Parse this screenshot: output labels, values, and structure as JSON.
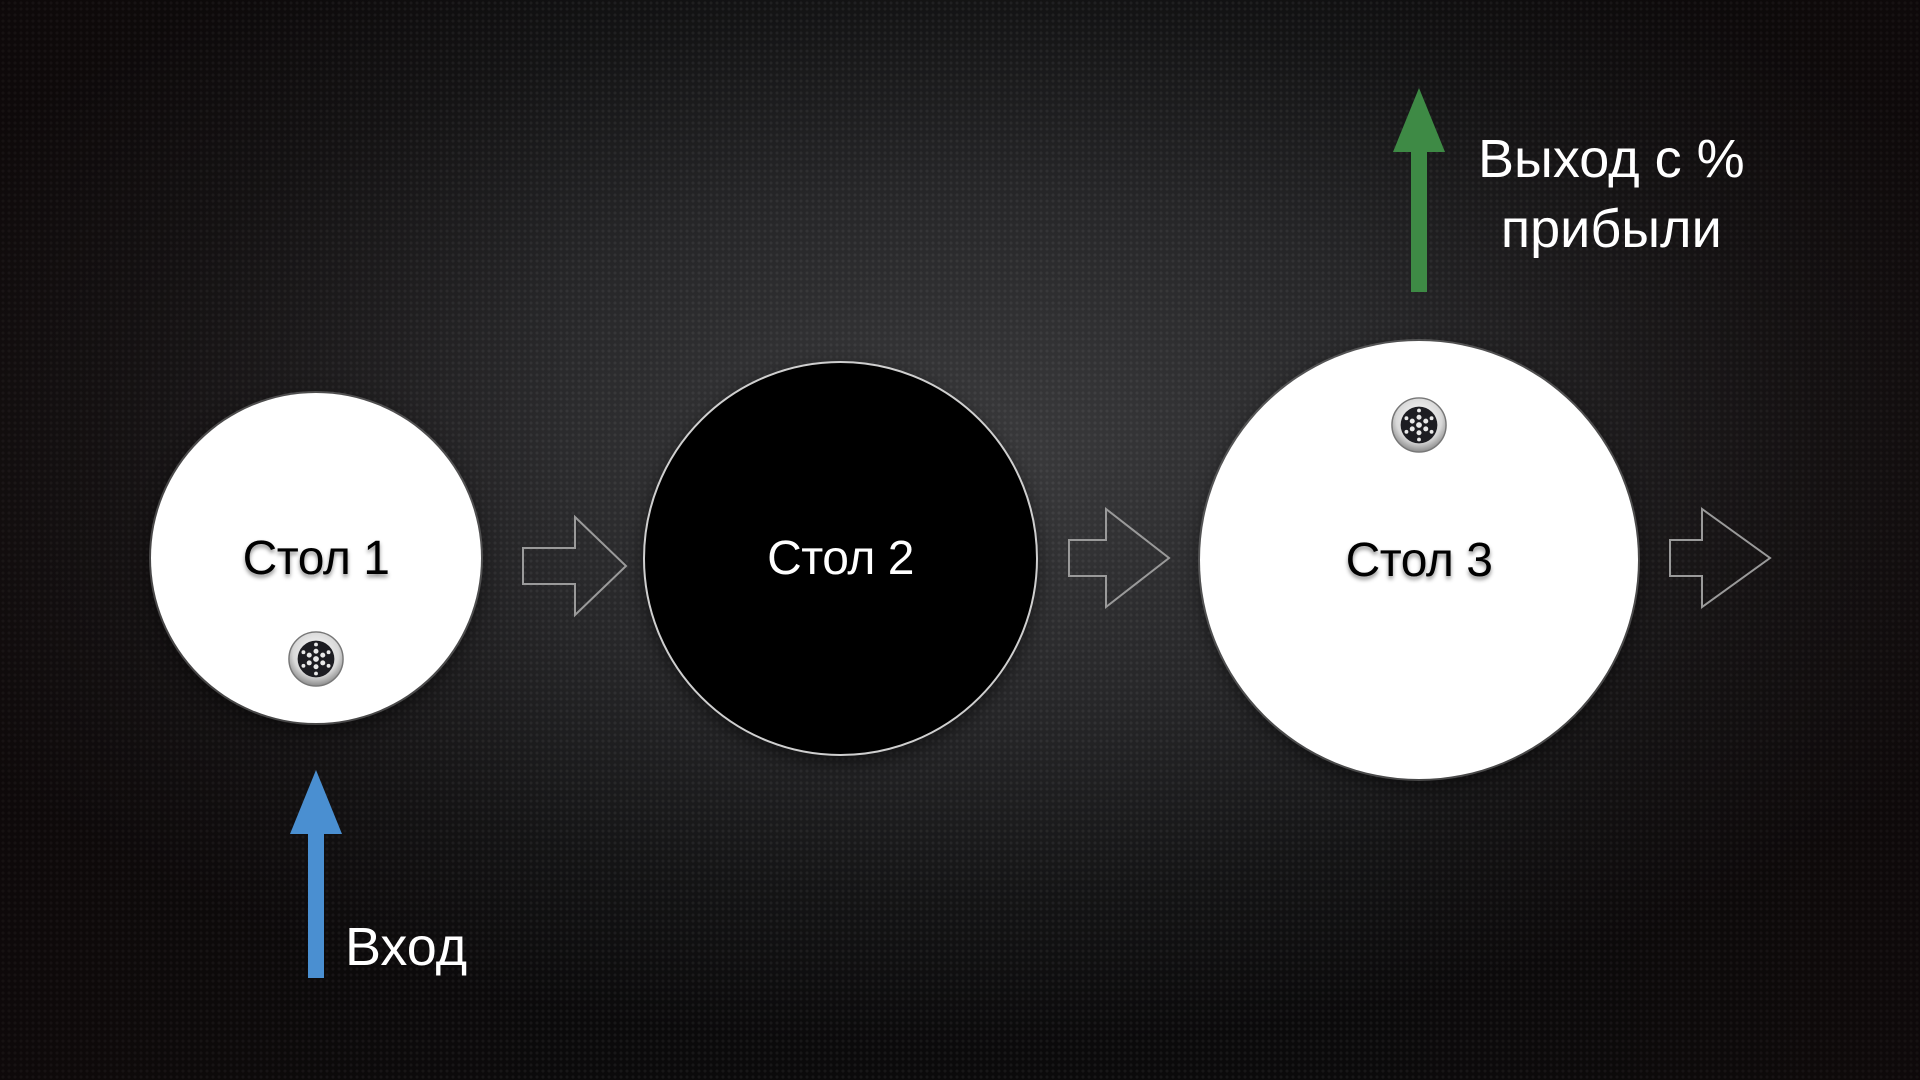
{
  "tables": [
    {
      "label": "Стол 1",
      "style": "white",
      "has_chip": true
    },
    {
      "label": "Стол 2",
      "style": "black",
      "has_chip": false
    },
    {
      "label": "Стол 3",
      "style": "white",
      "has_chip": true
    }
  ],
  "entry": {
    "label": "Вход",
    "color": "#4a8fd1"
  },
  "exit": {
    "line1": "Выход с %",
    "line2": "прибыли",
    "color": "#3e8a45"
  },
  "icons": {
    "chip": "poker-chip-icon",
    "flow": "hollow-right-arrow-icon"
  }
}
